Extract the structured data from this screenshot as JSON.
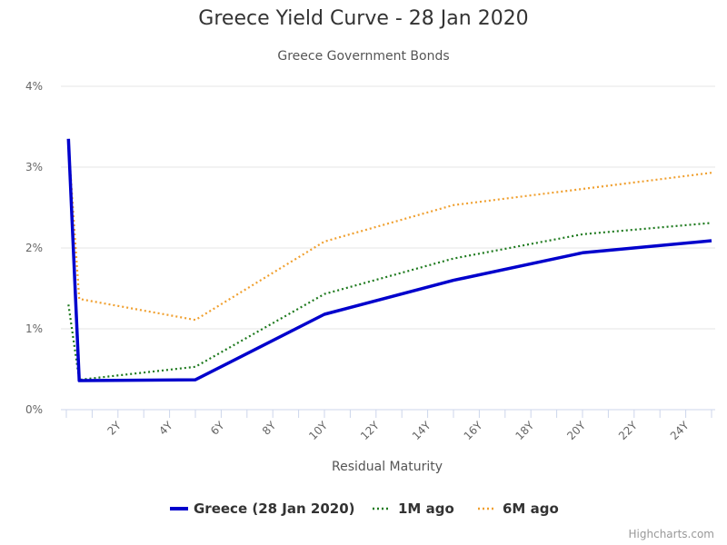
{
  "chart_data": {
    "type": "line",
    "title": "Greece Yield Curve - 28 Jan 2020",
    "subtitle": "Greece Government Bonds",
    "xlabel": "Residual Maturity",
    "ylabel": "",
    "xlim": [
      0,
      25
    ],
    "ylim": [
      0,
      4
    ],
    "x_ticks": [
      2,
      4,
      6,
      8,
      10,
      12,
      14,
      16,
      18,
      20,
      22,
      24
    ],
    "x_tick_labels": [
      "2Y",
      "4Y",
      "6Y",
      "8Y",
      "10Y",
      "12Y",
      "14Y",
      "16Y",
      "18Y",
      "20Y",
      "22Y",
      "24Y"
    ],
    "y_ticks": [
      0,
      1,
      2,
      3,
      4
    ],
    "y_tick_labels": [
      "0%",
      "1%",
      "2%",
      "3%",
      "4%"
    ],
    "grid": "horizontal",
    "legend_position": "bottom",
    "series": [
      {
        "name": "Greece (28 Jan 2020)",
        "color": "#0000cc",
        "style": "solid",
        "points": [
          [
            0.08,
            3.35
          ],
          [
            0.5,
            0.36
          ],
          [
            5,
            0.37
          ],
          [
            10,
            1.18
          ],
          [
            15,
            1.6
          ],
          [
            20,
            1.94
          ],
          [
            25,
            2.09
          ]
        ]
      },
      {
        "name": "1M ago",
        "color": "#1e7a1e",
        "style": "dotted",
        "points": [
          [
            0.08,
            1.3
          ],
          [
            0.5,
            0.37
          ],
          [
            5,
            0.53
          ],
          [
            10,
            1.43
          ],
          [
            15,
            1.87
          ],
          [
            20,
            2.17
          ],
          [
            25,
            2.31
          ]
        ]
      },
      {
        "name": "6M ago",
        "color": "#f0a030",
        "style": "dotted",
        "points": [
          [
            0.08,
            3.3
          ],
          [
            0.5,
            1.37
          ],
          [
            5,
            1.11
          ],
          [
            10,
            2.08
          ],
          [
            15,
            2.53
          ],
          [
            20,
            2.73
          ],
          [
            25,
            2.93
          ]
        ]
      }
    ]
  },
  "credits": "Highcharts.com"
}
